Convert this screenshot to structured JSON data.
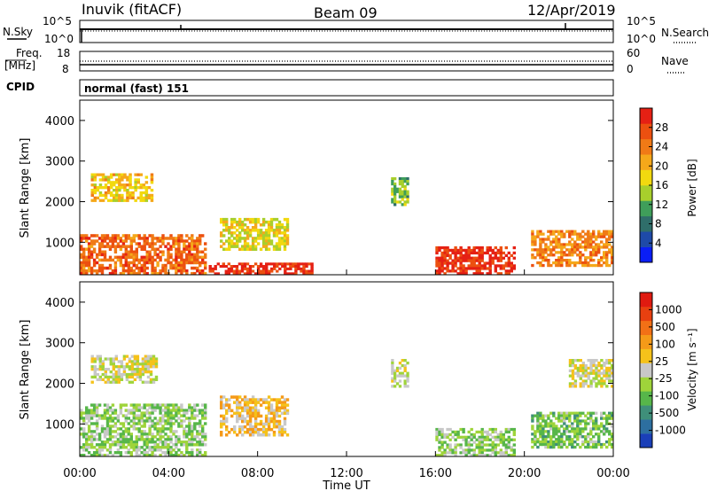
{
  "header": {
    "station": "Inuvik (fitACF)",
    "beam": "Beam 09",
    "date": "12/Apr/2019"
  },
  "panels": {
    "nsky": {
      "label": "N.Sky",
      "right_label": "N.Search",
      "left_ticks": [
        "10^5",
        "10^0"
      ],
      "right_ticks": [
        "10^5",
        "10^0"
      ]
    },
    "freq": {
      "label_lines": [
        "Freq.",
        "[MHz]"
      ],
      "left_ticks": [
        "18",
        "8"
      ],
      "right_ticks": [
        "60",
        "0"
      ],
      "right_label": "Nave"
    },
    "cpid": {
      "label": "CPID",
      "mode": "normal (fast) 151"
    }
  },
  "x_axis": {
    "label": "Time UT",
    "ticks": [
      "00:00",
      "04:00",
      "08:00",
      "12:00",
      "16:00",
      "20:00",
      "00:00"
    ]
  },
  "y_axis": {
    "label": "Slant Range [km]",
    "ticks": [
      "1000",
      "2000",
      "3000",
      "4000"
    ]
  },
  "power_bar": {
    "label": "Power [dB]",
    "ticks": [
      "4",
      "8",
      "12",
      "16",
      "20",
      "24",
      "28"
    ],
    "colors": [
      "#0a1ef5",
      "#1e4aa8",
      "#2f6e6a",
      "#3f9e5a",
      "#a8cf2c",
      "#f2d90f",
      "#f5a81a",
      "#f07a16",
      "#ec5010",
      "#e52014"
    ]
  },
  "velocity_bar": {
    "label": "Velocity [m s⁻¹]",
    "ticks": [
      "1000",
      "500",
      "100",
      "25",
      "-25",
      "-100",
      "-500",
      "-1000"
    ],
    "colors": [
      "#1a3fb8",
      "#2d6fa0",
      "#3f8f7a",
      "#57b64a",
      "#9fd43a",
      "#c8c8c8",
      "#f5c21a",
      "#f59a18",
      "#f27016",
      "#e84010",
      "#e01a10"
    ]
  },
  "chart_data": [
    {
      "type": "heatmap",
      "title": "",
      "xlabel": "Time UT",
      "ylabel": "Slant Range [km]",
      "xlim": [
        "00:00",
        "24:00"
      ],
      "ylim": [
        200,
        4500
      ],
      "colorbar_label": "Power [dB]",
      "colorbar_range": [
        0,
        30
      ],
      "features": [
        {
          "t_start": 0.0,
          "t_end": 5.7,
          "range_start": 200,
          "range_end": 1200,
          "value": 24
        },
        {
          "t_start": 0.5,
          "t_end": 3.3,
          "range_start": 2000,
          "range_end": 2700,
          "value": 18
        },
        {
          "t_start": 6.3,
          "t_end": 9.4,
          "range_start": 800,
          "range_end": 1600,
          "value": 16
        },
        {
          "t_start": 5.8,
          "t_end": 10.5,
          "range_start": 200,
          "range_end": 500,
          "value": 28
        },
        {
          "t_start": 14.0,
          "t_end": 14.8,
          "range_start": 1900,
          "range_end": 2600,
          "value": 12
        },
        {
          "t_start": 16.0,
          "t_end": 19.6,
          "range_start": 200,
          "range_end": 900,
          "value": 28
        },
        {
          "t_start": 20.3,
          "t_end": 24.0,
          "range_start": 400,
          "range_end": 1300,
          "value": 22
        }
      ]
    },
    {
      "type": "heatmap",
      "title": "",
      "xlabel": "Time UT",
      "ylabel": "Slant Range [km]",
      "xlim": [
        "00:00",
        "24:00"
      ],
      "ylim": [
        200,
        4500
      ],
      "colorbar_label": "Velocity [m s⁻¹]",
      "colorbar_range": [
        -1000,
        1000
      ],
      "features": [
        {
          "t_start": 0.0,
          "t_end": 5.7,
          "range_start": 200,
          "range_end": 1500,
          "value": -200
        },
        {
          "t_start": 0.5,
          "t_end": 3.5,
          "range_start": 2000,
          "range_end": 2700,
          "value": 0
        },
        {
          "t_start": 6.3,
          "t_end": 9.4,
          "range_start": 700,
          "range_end": 1700,
          "value": 200
        },
        {
          "t_start": 14.0,
          "t_end": 14.8,
          "range_start": 1900,
          "range_end": 2600,
          "value": 0
        },
        {
          "t_start": 16.0,
          "t_end": 19.6,
          "range_start": 200,
          "range_end": 900,
          "value": -200
        },
        {
          "t_start": 20.3,
          "t_end": 24.0,
          "range_start": 400,
          "range_end": 1300,
          "value": -300
        },
        {
          "t_start": 22.0,
          "t_end": 24.0,
          "range_start": 1900,
          "range_end": 2600,
          "value": 0
        }
      ]
    }
  ]
}
